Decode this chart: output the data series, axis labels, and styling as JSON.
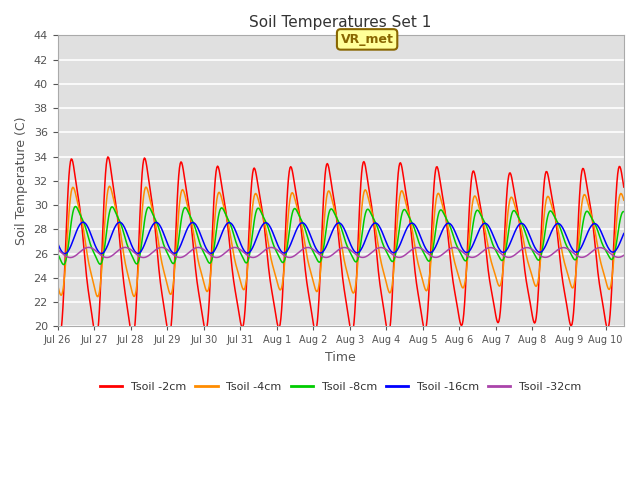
{
  "title": "Soil Temperatures Set 1",
  "xlabel": "Time",
  "ylabel": "Soil Temperature (C)",
  "ylim": [
    20,
    44
  ],
  "yticks": [
    20,
    22,
    24,
    26,
    28,
    30,
    32,
    34,
    36,
    38,
    40,
    42,
    44
  ],
  "bg_color": "#e0e0e0",
  "series_colors": [
    "#ff0000",
    "#ff8c00",
    "#00cc00",
    "#0000ff",
    "#aa44aa"
  ],
  "series_labels": [
    "Tsoil -2cm",
    "Tsoil -4cm",
    "Tsoil -8cm",
    "Tsoil -16cm",
    "Tsoil -32cm"
  ],
  "annotation_text": "VR_met",
  "annotation_bg": "#ffff99",
  "annotation_border": "#886600",
  "n_days": 15.5,
  "day_labels": [
    "Jul 26",
    "Jul 27",
    "Jul 28",
    "Jul 29",
    "Jul 30",
    "Jul 31",
    "Aug 1",
    "Aug 2",
    "Aug 3",
    "Aug 4",
    "Aug 5",
    "Aug 6",
    "Aug 7",
    "Aug 8",
    "Aug 9",
    "Aug 10"
  ],
  "tick_positions": [
    0,
    1,
    2,
    3,
    4,
    5,
    6,
    7,
    8,
    9,
    10,
    11,
    12,
    13,
    14,
    15
  ]
}
